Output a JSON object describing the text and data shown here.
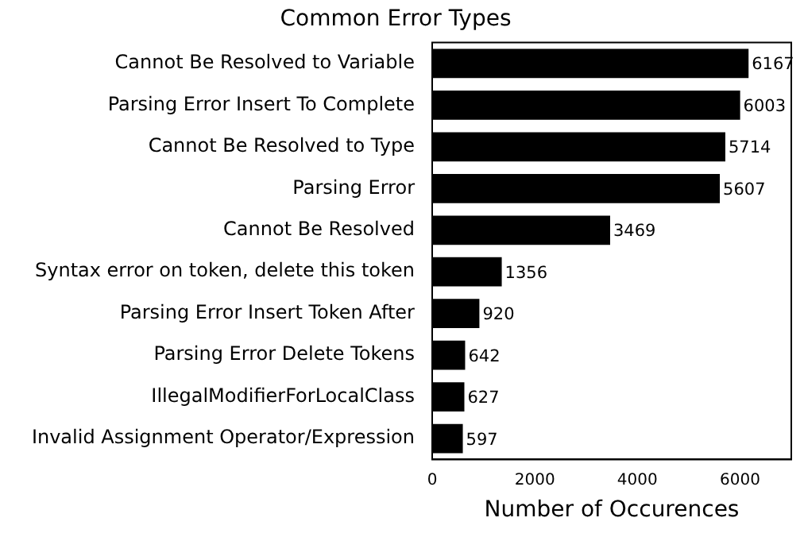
{
  "chart_data": {
    "type": "bar",
    "orientation": "horizontal",
    "title": "Common Error Types",
    "xlabel": "Number of Occurences",
    "categories": [
      "Cannot Be Resolved to Variable",
      "Parsing Error Insert To Complete",
      "Cannot Be Resolved to Type",
      "Parsing Error",
      "Cannot Be Resolved",
      "Syntax error on token, delete this token",
      "Parsing Error Insert Token After",
      "Parsing Error Delete Tokens",
      "IllegalModifierForLocalClass",
      "Invalid Assignment Operator/Expression"
    ],
    "values": [
      6167,
      6003,
      5714,
      5607,
      3469,
      1356,
      920,
      642,
      627,
      597
    ],
    "color": "#000000",
    "xlim": [
      0,
      7000
    ],
    "xticks": [
      0,
      2000,
      4000,
      6000
    ],
    "data_labels": true,
    "legend": false
  }
}
